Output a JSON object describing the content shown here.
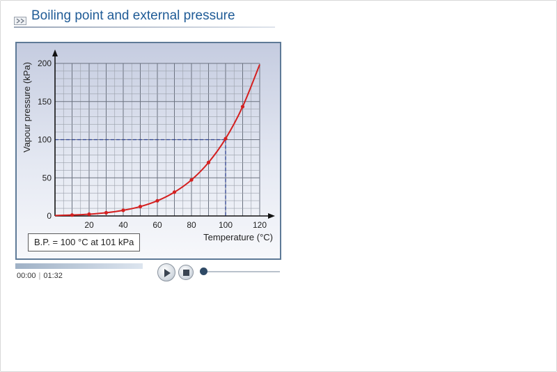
{
  "header": {
    "icon": "slideshow-icon",
    "title": "Boiling point and external pressure"
  },
  "chart_data": {
    "type": "line",
    "title": "",
    "xlabel": "Temperature (°C)",
    "ylabel": "Vapour pressure (kPa)",
    "xlim": [
      0,
      120
    ],
    "ylim": [
      0,
      200
    ],
    "x_ticks": [
      "20",
      "40",
      "60",
      "80",
      "100",
      "120"
    ],
    "y_ticks": [
      "0",
      "50",
      "100",
      "150",
      "200"
    ],
    "grid": true,
    "series": [
      {
        "color": "#d42020",
        "x": [
          0,
          10,
          20,
          30,
          40,
          50,
          60,
          70,
          80,
          90,
          100,
          110,
          120
        ],
        "y": [
          0.6,
          1.2,
          2.3,
          4.2,
          7.4,
          12.3,
          19.9,
          31.2,
          47.3,
          70.1,
          101.3,
          143.3,
          198.5
        ],
        "marker_x": [
          10,
          20,
          30,
          40,
          50,
          60,
          70,
          80,
          90,
          100,
          110
        ]
      }
    ],
    "reference": {
      "x": 100,
      "y": 100,
      "style": "dashed",
      "color": "#2b3f8f"
    },
    "annotation": "B.P. = 100 °C at 101 kPa"
  },
  "player": {
    "current_time": "00:00",
    "total_time": "01:32",
    "progress": 0,
    "volume": 0
  },
  "colors": {
    "title": "#1f5b96",
    "curve": "#d42020",
    "reference": "#2b3f8f",
    "panel_border": "#5e7a97"
  }
}
